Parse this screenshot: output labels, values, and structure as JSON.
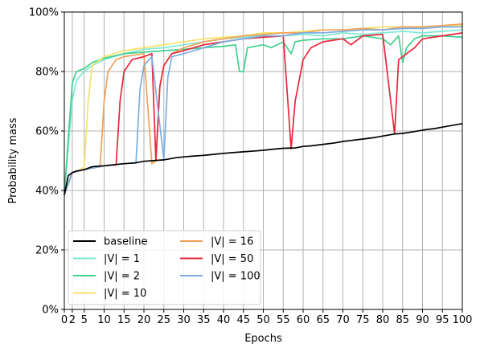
{
  "chart_data": {
    "type": "line",
    "title": "",
    "xlabel": "Epochs",
    "ylabel": "Probability mass",
    "xlim": [
      0,
      100
    ],
    "ylim": [
      0,
      100
    ],
    "x_ticks": [
      "0",
      "2",
      "5",
      "10",
      "15",
      "20",
      "25",
      "30",
      "35",
      "40",
      "45",
      "50",
      "55",
      "60",
      "65",
      "70",
      "75",
      "80",
      "85",
      "90",
      "95",
      "100"
    ],
    "y_ticks": [
      "0%",
      "20%",
      "40%",
      "60%",
      "80%",
      "100%"
    ],
    "grid": true,
    "legend": {
      "placement": "lower-left",
      "columns": 2
    },
    "series": [
      {
        "name": "baseline",
        "color": "#000000",
        "points": [
          [
            0,
            38.5
          ],
          [
            1,
            45
          ],
          [
            2,
            46
          ],
          [
            3,
            46.5
          ],
          [
            5,
            47
          ],
          [
            7,
            48
          ],
          [
            10,
            48.3
          ],
          [
            12,
            48.6
          ],
          [
            15,
            49
          ],
          [
            18,
            49.3
          ],
          [
            20,
            49.8
          ],
          [
            22,
            50
          ],
          [
            25,
            50.3
          ],
          [
            28,
            51
          ],
          [
            30,
            51.3
          ],
          [
            32,
            51.5
          ],
          [
            35,
            51.8
          ],
          [
            38,
            52.2
          ],
          [
            40,
            52.5
          ],
          [
            42,
            52.7
          ],
          [
            45,
            53
          ],
          [
            48,
            53.3
          ],
          [
            50,
            53.5
          ],
          [
            52,
            53.8
          ],
          [
            55,
            54.2
          ],
          [
            58,
            54.3
          ],
          [
            60,
            54.8
          ],
          [
            62,
            55
          ],
          [
            65,
            55.5
          ],
          [
            68,
            56
          ],
          [
            70,
            56.5
          ],
          [
            72,
            56.8
          ],
          [
            75,
            57.3
          ],
          [
            78,
            57.8
          ],
          [
            80,
            58.3
          ],
          [
            83,
            59
          ],
          [
            85,
            59.2
          ],
          [
            88,
            59.8
          ],
          [
            90,
            60.3
          ],
          [
            93,
            60.8
          ],
          [
            95,
            61.3
          ],
          [
            98,
            62
          ],
          [
            100,
            62.5
          ]
        ]
      },
      {
        "name": "|V| = 1",
        "color": "#7ee8d2",
        "points": [
          [
            0,
            38.5
          ],
          [
            1,
            55
          ],
          [
            2,
            70
          ],
          [
            3,
            77
          ],
          [
            5,
            80
          ],
          [
            7,
            82
          ],
          [
            10,
            84
          ],
          [
            15,
            86
          ],
          [
            20,
            87.5
          ],
          [
            25,
            88
          ],
          [
            30,
            89
          ],
          [
            35,
            90
          ],
          [
            40,
            91
          ],
          [
            45,
            91.5
          ],
          [
            50,
            92
          ],
          [
            55,
            92
          ],
          [
            60,
            92.5
          ],
          [
            65,
            92
          ],
          [
            70,
            93
          ],
          [
            75,
            92.5
          ],
          [
            80,
            93
          ],
          [
            85,
            93.5
          ],
          [
            90,
            93
          ],
          [
            95,
            93.5
          ],
          [
            100,
            94
          ]
        ]
      },
      {
        "name": "|V| = 2",
        "color": "#41d08f",
        "points": [
          [
            0,
            38.5
          ],
          [
            1,
            58
          ],
          [
            2,
            76
          ],
          [
            3,
            80
          ],
          [
            5,
            81
          ],
          [
            7,
            83
          ],
          [
            10,
            84.5
          ],
          [
            15,
            86
          ],
          [
            20,
            86.5
          ],
          [
            25,
            87
          ],
          [
            30,
            87.5
          ],
          [
            35,
            88
          ],
          [
            40,
            88.5
          ],
          [
            43,
            89
          ],
          [
            44,
            80
          ],
          [
            45,
            80
          ],
          [
            46,
            88
          ],
          [
            50,
            89
          ],
          [
            52,
            88
          ],
          [
            55,
            90
          ],
          [
            57,
            86
          ],
          [
            58,
            90
          ],
          [
            60,
            90.5
          ],
          [
            65,
            91
          ],
          [
            70,
            91
          ],
          [
            75,
            92
          ],
          [
            80,
            91
          ],
          [
            82,
            89
          ],
          [
            84,
            92
          ],
          [
            85,
            83
          ],
          [
            86,
            88
          ],
          [
            88,
            91
          ],
          [
            90,
            92
          ],
          [
            95,
            92
          ],
          [
            100,
            91.5
          ]
        ]
      },
      {
        "name": "|V| = 10",
        "color": "#f5e26b",
        "points": [
          [
            0,
            38.5
          ],
          [
            2,
            46
          ],
          [
            4,
            47
          ],
          [
            5,
            48
          ],
          [
            6,
            70
          ],
          [
            7,
            82
          ],
          [
            10,
            85
          ],
          [
            15,
            87
          ],
          [
            20,
            88
          ],
          [
            25,
            89
          ],
          [
            30,
            90
          ],
          [
            35,
            91
          ],
          [
            40,
            91.5
          ],
          [
            45,
            92
          ],
          [
            50,
            93
          ],
          [
            55,
            93
          ],
          [
            60,
            93.5
          ],
          [
            65,
            94
          ],
          [
            70,
            94
          ],
          [
            75,
            94.5
          ],
          [
            80,
            95
          ],
          [
            85,
            95
          ],
          [
            90,
            95
          ],
          [
            95,
            95.5
          ],
          [
            100,
            95.5
          ]
        ]
      },
      {
        "name": "|V| = 16",
        "color": "#f2a15a",
        "points": [
          [
            0,
            38.5
          ],
          [
            2,
            46
          ],
          [
            5,
            47
          ],
          [
            9,
            48
          ],
          [
            10,
            70
          ],
          [
            11,
            80
          ],
          [
            13,
            84
          ],
          [
            15,
            85
          ],
          [
            20,
            86
          ],
          [
            22,
            49
          ],
          [
            23,
            50
          ],
          [
            24,
            75
          ],
          [
            25,
            82
          ],
          [
            27,
            86
          ],
          [
            30,
            88
          ],
          [
            35,
            90
          ],
          [
            40,
            91
          ],
          [
            45,
            92
          ],
          [
            50,
            92.5
          ],
          [
            55,
            93
          ],
          [
            60,
            93
          ],
          [
            65,
            94
          ],
          [
            70,
            94
          ],
          [
            75,
            94.5
          ],
          [
            80,
            94
          ],
          [
            85,
            95
          ],
          [
            90,
            95
          ],
          [
            95,
            95.5
          ],
          [
            100,
            96
          ]
        ]
      },
      {
        "name": "|V| = 50",
        "color": "#e8263a",
        "points": [
          [
            0,
            38.5
          ],
          [
            2,
            46
          ],
          [
            5,
            47
          ],
          [
            10,
            48.3
          ],
          [
            13,
            48.6
          ],
          [
            14,
            70
          ],
          [
            15,
            80
          ],
          [
            17,
            84
          ],
          [
            20,
            85
          ],
          [
            22,
            86
          ],
          [
            23,
            50
          ],
          [
            24,
            75
          ],
          [
            25,
            82
          ],
          [
            27,
            86
          ],
          [
            30,
            87
          ],
          [
            35,
            89
          ],
          [
            40,
            90
          ],
          [
            45,
            91
          ],
          [
            50,
            91.5
          ],
          [
            55,
            92
          ],
          [
            57,
            54
          ],
          [
            58,
            70
          ],
          [
            60,
            84
          ],
          [
            62,
            88
          ],
          [
            65,
            90
          ],
          [
            70,
            91
          ],
          [
            72,
            89
          ],
          [
            75,
            92
          ],
          [
            80,
            92.5
          ],
          [
            83,
            59
          ],
          [
            84,
            84
          ],
          [
            85,
            85
          ],
          [
            88,
            88
          ],
          [
            90,
            91
          ],
          [
            95,
            92
          ],
          [
            100,
            93
          ]
        ]
      },
      {
        "name": "|V| = 100",
        "color": "#7aaee0",
        "points": [
          [
            0,
            38.5
          ],
          [
            2,
            46
          ],
          [
            5,
            47
          ],
          [
            10,
            48.3
          ],
          [
            15,
            49
          ],
          [
            18,
            49.3
          ],
          [
            19,
            74
          ],
          [
            20,
            82
          ],
          [
            22,
            85
          ],
          [
            25,
            50.3
          ],
          [
            26,
            78
          ],
          [
            27,
            85
          ],
          [
            30,
            86
          ],
          [
            35,
            88
          ],
          [
            40,
            90
          ],
          [
            45,
            91
          ],
          [
            50,
            92
          ],
          [
            55,
            92
          ],
          [
            60,
            93
          ],
          [
            65,
            93
          ],
          [
            70,
            93.5
          ],
          [
            75,
            94
          ],
          [
            80,
            94
          ],
          [
            85,
            94.5
          ],
          [
            90,
            94.5
          ],
          [
            95,
            95
          ],
          [
            100,
            95
          ]
        ]
      }
    ]
  }
}
